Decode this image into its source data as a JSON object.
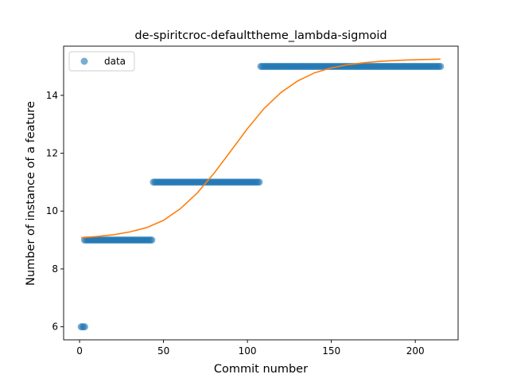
{
  "chart_data": {
    "type": "scatter",
    "title": "de-spiritcroc-defaulttheme_lambda-sigmoid",
    "xlabel": "Commit number",
    "ylabel": "Number of instance of a feature",
    "xlim": [
      -9.5,
      225.5
    ],
    "ylim": [
      5.55,
      15.7
    ],
    "xticks": [
      0,
      50,
      100,
      150,
      200
    ],
    "yticks": [
      6,
      8,
      10,
      12,
      14
    ],
    "grid": false,
    "legend": {
      "placement": "top-left",
      "entries": [
        "data"
      ]
    },
    "colors": {
      "data": "#1f77b4",
      "fit": "#ff7f0e"
    },
    "series": [
      {
        "name": "data",
        "kind": "scatter",
        "segments": [
          {
            "x_start": 1,
            "x_end": 3,
            "y": 6
          },
          {
            "x_start": 3,
            "x_end": 43,
            "y": 9
          },
          {
            "x_start": 44,
            "x_end": 107,
            "y": 11
          },
          {
            "x_start": 108,
            "x_end": 215,
            "y": 15
          }
        ]
      },
      {
        "kind": "line",
        "x": [
          1,
          10,
          20,
          30,
          40,
          50,
          60,
          70,
          80,
          90,
          100,
          110,
          120,
          130,
          140,
          150,
          160,
          170,
          180,
          190,
          200,
          215
        ],
        "y": [
          9.08,
          9.12,
          9.18,
          9.28,
          9.43,
          9.68,
          10.08,
          10.62,
          11.3,
          12.07,
          12.85,
          13.55,
          14.1,
          14.5,
          14.78,
          14.95,
          15.06,
          15.13,
          15.18,
          15.21,
          15.23,
          15.25
        ]
      }
    ]
  }
}
